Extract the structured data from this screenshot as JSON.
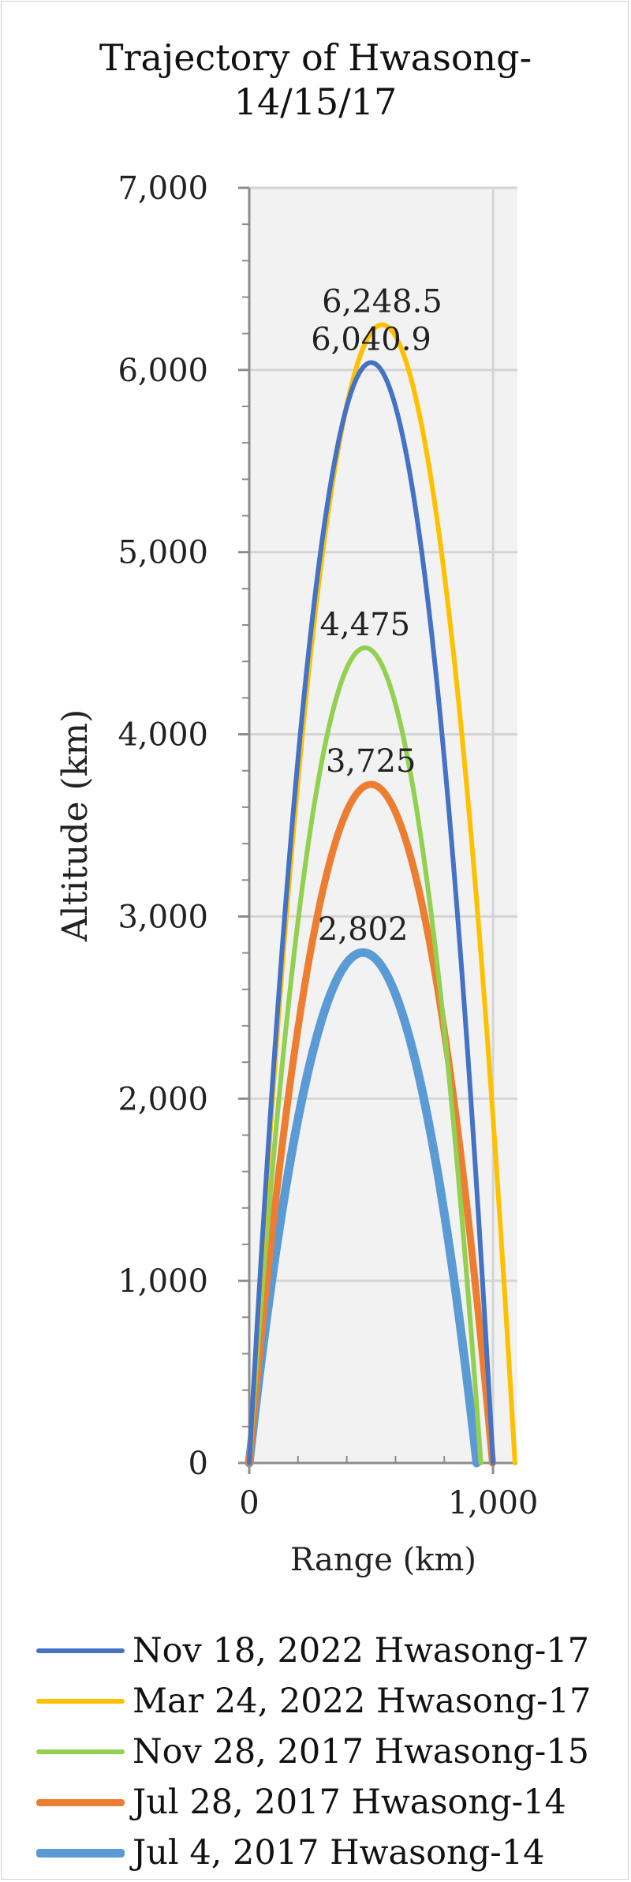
{
  "chart_data": {
    "type": "line",
    "title_lines": [
      "Trajectory of Hwasong-",
      "14/15/17"
    ],
    "xlabel": "Range (km)",
    "ylabel": "Altitude (km)",
    "xlim": [
      0,
      1100
    ],
    "ylim": [
      0,
      7000
    ],
    "x_ticks": [
      0,
      1000
    ],
    "x_tick_labels": [
      "0",
      "1,000"
    ],
    "y_ticks": [
      0,
      1000,
      2000,
      3000,
      4000,
      5000,
      6000,
      7000
    ],
    "y_tick_labels": [
      "0",
      "1,000",
      "2,000",
      "3,000",
      "4,000",
      "5,000",
      "6,000",
      "7,000"
    ],
    "grid": true,
    "legend_position": "bottom",
    "series": [
      {
        "name": "Nov 18, 2022 Hwasong-17",
        "color": "#4472C4",
        "range": 1000,
        "apogee": 6040.9,
        "apogee_label": "6,040.9",
        "line_width": 6
      },
      {
        "name": "Mar 24, 2022 Hwasong-17",
        "color": "#FFC000",
        "range": 1090,
        "apogee": 6248.5,
        "apogee_label": "6,248.5",
        "line_width": 6
      },
      {
        "name": "Nov 28, 2017 Hwasong-15",
        "color": "#92D050",
        "range": 950,
        "apogee": 4475,
        "apogee_label": "4,475",
        "line_width": 6
      },
      {
        "name": "Jul 28, 2017 Hwasong-14",
        "color": "#ED7D31",
        "range": 998,
        "apogee": 3725,
        "apogee_label": "3,725",
        "line_width": 9
      },
      {
        "name": "Jul 4, 2017 Hwasong-14",
        "color": "#5B9BD5",
        "range": 933,
        "apogee": 2802,
        "apogee_label": "2,802",
        "line_width": 11
      }
    ]
  }
}
